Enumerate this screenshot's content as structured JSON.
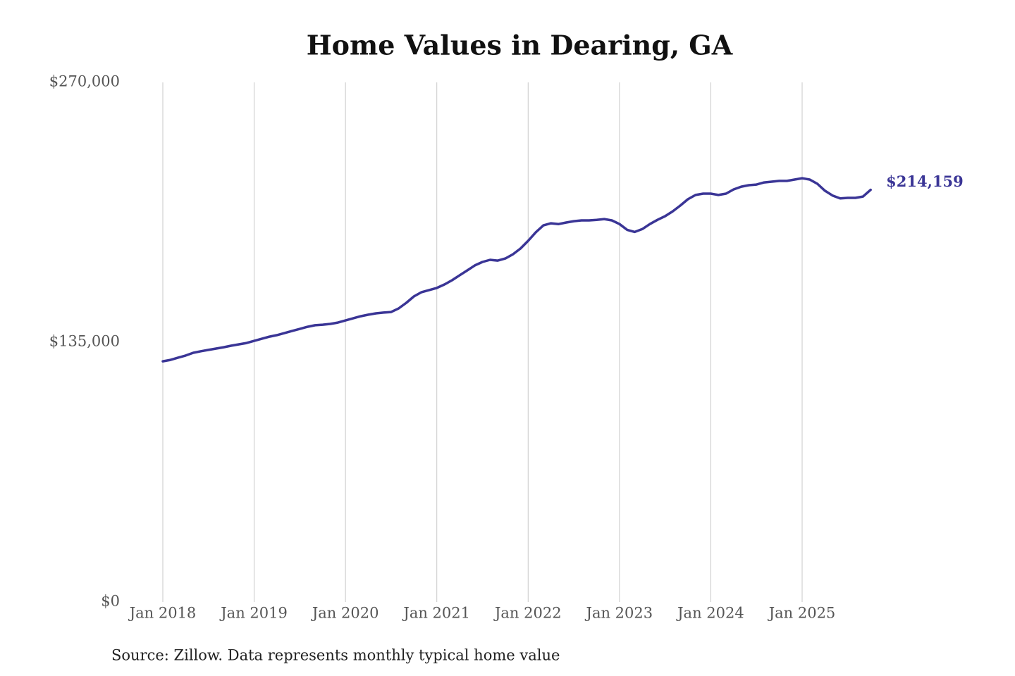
{
  "chart_data": {
    "type": "line",
    "title": "Home Values in Dearing, GA",
    "source": "Source: Zillow. Data represents monthly typical home value",
    "end_label": "$214,159",
    "x": [
      "Jan 2018",
      "Feb 2018",
      "Mar 2018",
      "Apr 2018",
      "May 2018",
      "Jun 2018",
      "Jul 2018",
      "Aug 2018",
      "Sep 2018",
      "Oct 2018",
      "Nov 2018",
      "Dec 2018",
      "Jan 2019",
      "Feb 2019",
      "Mar 2019",
      "Apr 2019",
      "May 2019",
      "Jun 2019",
      "Jul 2019",
      "Aug 2019",
      "Sep 2019",
      "Oct 2019",
      "Nov 2019",
      "Dec 2019",
      "Jan 2020",
      "Feb 2020",
      "Mar 2020",
      "Apr 2020",
      "May 2020",
      "Jun 2020",
      "Jul 2020",
      "Aug 2020",
      "Sep 2020",
      "Oct 2020",
      "Nov 2020",
      "Dec 2020",
      "Jan 2021",
      "Feb 2021",
      "Mar 2021",
      "Apr 2021",
      "May 2021",
      "Jun 2021",
      "Jul 2021",
      "Aug 2021",
      "Sep 2021",
      "Oct 2021",
      "Nov 2021",
      "Dec 2021",
      "Jan 2022",
      "Feb 2022",
      "Mar 2022",
      "Apr 2022",
      "May 2022",
      "Jun 2022",
      "Jul 2022",
      "Aug 2022",
      "Sep 2022",
      "Oct 2022",
      "Nov 2022",
      "Dec 2022",
      "Jan 2023",
      "Feb 2023",
      "Mar 2023",
      "Apr 2023",
      "May 2023",
      "Jun 2023",
      "Jul 2023",
      "Aug 2023",
      "Sep 2023",
      "Oct 2023",
      "Nov 2023",
      "Dec 2023",
      "Jan 2024",
      "Feb 2024",
      "Mar 2024",
      "Apr 2024",
      "May 2024",
      "Jun 2024",
      "Jul 2024",
      "Aug 2024",
      "Sep 2024",
      "Oct 2024",
      "Nov 2024",
      "Dec 2024",
      "Jan 2025",
      "Feb 2025",
      "Mar 2025",
      "Apr 2025",
      "May 2025",
      "Jun 2025",
      "Jul 2025",
      "Aug 2025",
      "Sep 2025",
      "Oct 2025"
    ],
    "series": [
      {
        "color": "#3a3596",
        "values": [
          125100,
          125800,
          127000,
          128100,
          129500,
          130300,
          131000,
          131700,
          132400,
          133200,
          133900,
          134600,
          135700,
          136800,
          137900,
          138700,
          139800,
          140900,
          141900,
          143000,
          143800,
          144100,
          144500,
          145200,
          146300,
          147400,
          148500,
          149300,
          150000,
          150400,
          150700,
          152600,
          155500,
          158800,
          161000,
          162100,
          163200,
          165000,
          167200,
          169800,
          172300,
          174900,
          176700,
          177800,
          177400,
          178500,
          180700,
          183700,
          187700,
          192100,
          195700,
          196800,
          196400,
          197200,
          197900,
          198300,
          198300,
          198600,
          199000,
          198300,
          196400,
          193400,
          192300,
          193800,
          196400,
          198600,
          200500,
          203000,
          206000,
          209300,
          211500,
          212200,
          212200,
          211500,
          212200,
          214400,
          215800,
          216600,
          216900,
          218000,
          218400,
          218800,
          218800,
          219500,
          220200,
          219500,
          217300,
          213700,
          211200,
          209700,
          210000,
          210000,
          210700,
          214159
        ]
      }
    ],
    "ylim": [
      0,
      270000
    ],
    "yticks": [
      {
        "value": 0,
        "label": "$0"
      },
      {
        "value": 135000,
        "label": "$135,000"
      },
      {
        "value": 270000,
        "label": "$270,000"
      }
    ],
    "xticks": [
      "Jan 2018",
      "Jan 2019",
      "Jan 2020",
      "Jan 2021",
      "Jan 2022",
      "Jan 2023",
      "Jan 2024",
      "Jan 2025"
    ],
    "grid": "x"
  }
}
